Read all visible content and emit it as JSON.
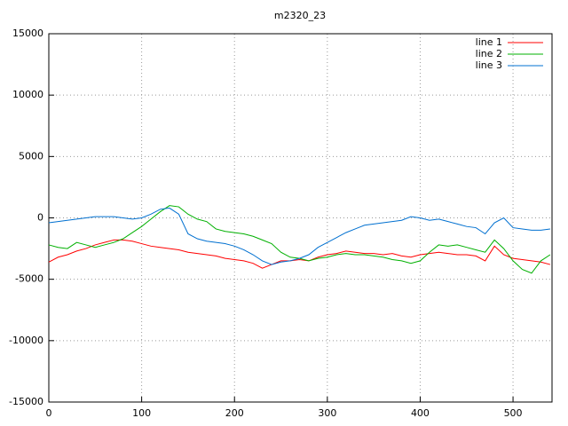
{
  "chart_data": {
    "type": "line",
    "title": "m2320_23",
    "x": [
      0,
      10,
      20,
      30,
      40,
      50,
      60,
      70,
      80,
      90,
      100,
      110,
      120,
      130,
      140,
      150,
      160,
      170,
      180,
      190,
      200,
      210,
      220,
      230,
      240,
      250,
      260,
      270,
      280,
      290,
      300,
      310,
      320,
      330,
      340,
      350,
      360,
      370,
      380,
      390,
      400,
      410,
      420,
      430,
      440,
      450,
      460,
      470,
      480,
      490,
      500,
      510,
      520,
      530,
      540
    ],
    "series": [
      {
        "name": "line 1",
        "color": "#ff0000",
        "values": [
          -3600,
          -3200,
          -3000,
          -2700,
          -2500,
          -2200,
          -2000,
          -1800,
          -1800,
          -1900,
          -2100,
          -2300,
          -2400,
          -2500,
          -2600,
          -2800,
          -2900,
          -3000,
          -3100,
          -3300,
          -3400,
          -3500,
          -3700,
          -4100,
          -3800,
          -3500,
          -3500,
          -3400,
          -3500,
          -3200,
          -3000,
          -2900,
          -2700,
          -2800,
          -2900,
          -2900,
          -3000,
          -2900,
          -3100,
          -3200,
          -3000,
          -2900,
          -2800,
          -2900,
          -3000,
          -3000,
          -3100,
          -3500,
          -2300,
          -3000,
          -3300,
          -3400,
          -3500,
          -3600,
          -3800
        ]
      },
      {
        "name": "line 2",
        "color": "#00b000",
        "values": [
          -2200,
          -2400,
          -2500,
          -2000,
          -2200,
          -2400,
          -2200,
          -2000,
          -1700,
          -1200,
          -700,
          -100,
          500,
          1000,
          900,
          300,
          -100,
          -300,
          -900,
          -1100,
          -1200,
          -1300,
          -1500,
          -1800,
          -2100,
          -2800,
          -3200,
          -3300,
          -3500,
          -3300,
          -3200,
          -3000,
          -2900,
          -3000,
          -3000,
          -3100,
          -3200,
          -3400,
          -3500,
          -3700,
          -3500,
          -2800,
          -2200,
          -2300,
          -2200,
          -2400,
          -2600,
          -2800,
          -1800,
          -2500,
          -3500,
          -4200,
          -4500,
          -3500,
          -3000
        ]
      },
      {
        "name": "line 3",
        "color": "#0070d0",
        "values": [
          -400,
          -300,
          -200,
          -100,
          0,
          100,
          100,
          100,
          0,
          -100,
          0,
          300,
          700,
          800,
          300,
          -1300,
          -1700,
          -1900,
          -2000,
          -2100,
          -2300,
          -2600,
          -3000,
          -3500,
          -3800,
          -3600,
          -3500,
          -3300,
          -3000,
          -2400,
          -2000,
          -1600,
          -1200,
          -900,
          -600,
          -500,
          -400,
          -300,
          -200,
          100,
          0,
          -200,
          -100,
          -300,
          -500,
          -700,
          -800,
          -1300,
          -400,
          0,
          -800,
          -900,
          -1000,
          -1000,
          -900
        ]
      }
    ],
    "xlim": [
      0,
      542
    ],
    "xticks": [
      0,
      100,
      200,
      300,
      400,
      500
    ],
    "ylim": [
      -15000,
      15000
    ],
    "yticks": [
      -15000,
      -10000,
      -5000,
      0,
      5000,
      10000,
      15000
    ],
    "grid": true,
    "legend": "top-right"
  }
}
